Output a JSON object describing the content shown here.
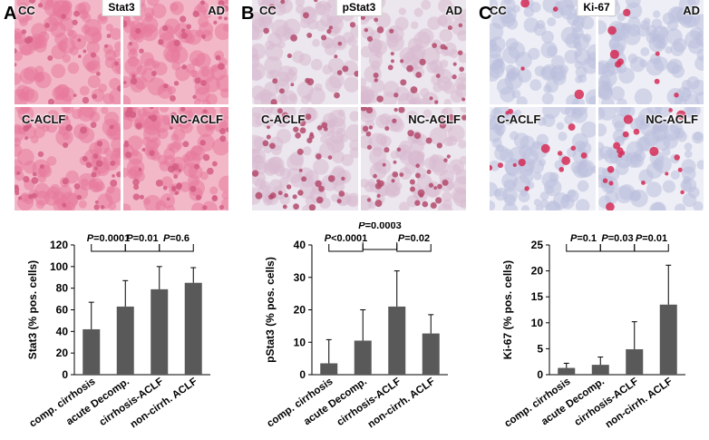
{
  "panels": [
    {
      "letter": "A",
      "stain": "Stat3",
      "tiles": [
        "CC",
        "AD",
        "C-ACLF",
        "NC-ACLF"
      ],
      "tile_colors": {
        "bg": "#f2b8c8",
        "cell": "#e77a9c",
        "nucleus": "#d45d84"
      },
      "stats": [
        "P=0.0001",
        "P=0.01",
        "P=0.6"
      ]
    },
    {
      "letter": "B",
      "stain": "pStat3",
      "tiles": [
        "CC",
        "AD",
        "C-ACLF",
        "NC-ACLF"
      ],
      "tile_colors": {
        "bg": "#ece6ee",
        "cell": "#d9b9cf",
        "nucleus": "#b44a6c"
      },
      "stats": [
        "P<0.0001",
        "P=0.0003",
        "P=0.02"
      ]
    },
    {
      "letter": "C",
      "stain": "Ki-67",
      "tiles": [
        "CC",
        "AD",
        "C-ACLF",
        "NC-ACLF"
      ],
      "tile_colors": {
        "bg": "#eeeef6",
        "cell": "#bcc0dc",
        "nucleus": "#d52a55"
      },
      "stats": [
        "P=0.1",
        "P=0.03",
        "P=0.01"
      ]
    }
  ],
  "chart_data": [
    {
      "type": "bar",
      "categories": [
        "comp. cirrhosis",
        "acute Decomp.",
        "cirrhosis-ACLF",
        "non-cirrh. ACLF"
      ],
      "values": [
        42,
        63,
        79,
        85
      ],
      "error_plus": [
        25,
        24,
        21,
        14
      ],
      "ylabel": "Stat3 (% pos. cells)",
      "ylim": [
        0,
        120
      ],
      "yticks": [
        "0",
        "20",
        "40",
        "60",
        "80",
        "100",
        "120"
      ],
      "bar_color": "#595959",
      "annotations": [
        {
          "text": "P=0.0001",
          "from": 0,
          "to": 1,
          "level": 0
        },
        {
          "text": "P=0.01",
          "from": 1,
          "to": 2,
          "level": 0
        },
        {
          "text": "P=0.6",
          "from": 2,
          "to": 3,
          "level": 0
        }
      ]
    },
    {
      "type": "bar",
      "categories": [
        "comp. cirrhosis",
        "acute Decomp.",
        "cirrhosis-ACLF",
        "non-cirrh. ACLF"
      ],
      "values": [
        3.5,
        10.5,
        21,
        12.7
      ],
      "error_plus": [
        7.3,
        9.5,
        11,
        5.8
      ],
      "ylabel": "pStat3 (% pos. cells)",
      "ylim": [
        0,
        40
      ],
      "yticks": [
        "0",
        "10",
        "20",
        "30",
        "40"
      ],
      "bar_color": "#595959",
      "annotations": [
        {
          "text": "P<0.0001",
          "from": 0,
          "to": 1,
          "level": 0
        },
        {
          "text": "P=0.0003",
          "from": 1,
          "to": 2,
          "level": 1
        },
        {
          "text": "P=0.02",
          "from": 2,
          "to": 3,
          "level": 0
        }
      ]
    },
    {
      "type": "bar",
      "categories": [
        "comp. cirrhosis",
        "acute Decomp.",
        "cirrhosis-ACLF",
        "non-cirrh. ACLF"
      ],
      "values": [
        1.3,
        1.9,
        4.9,
        13.5
      ],
      "error_plus": [
        0.9,
        1.5,
        5.3,
        7.6
      ],
      "ylabel": "Ki-67 (% pos. cells)",
      "ylim": [
        0,
        25
      ],
      "yticks": [
        "0",
        "5",
        "10",
        "15",
        "20",
        "25"
      ],
      "bar_color": "#595959",
      "annotations": [
        {
          "text": "P=0.1",
          "from": 0,
          "to": 1,
          "level": 0
        },
        {
          "text": "P=0.03",
          "from": 1,
          "to": 2,
          "level": 0
        },
        {
          "text": "P=0.01",
          "from": 2,
          "to": 3,
          "level": 0
        }
      ]
    }
  ]
}
